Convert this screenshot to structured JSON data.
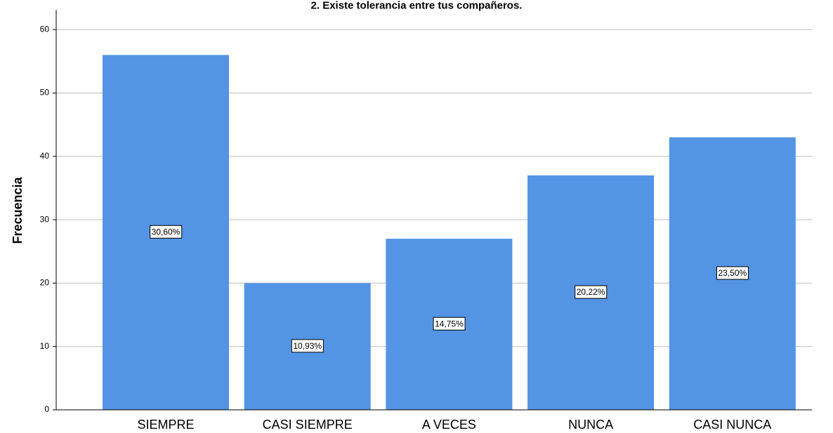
{
  "chart_data": {
    "type": "bar",
    "title": "2. Existe tolerancia entre tus compañeros.",
    "xlabel": "",
    "ylabel": "Frecuencia",
    "categories": [
      "SIEMPRE",
      "CASI SIEMPRE",
      "A VECES",
      "NUNCA",
      "CASI NUNCA"
    ],
    "values": [
      56,
      20,
      27,
      37,
      43
    ],
    "data_labels": [
      "30,60%",
      "10,93%",
      "14,75%",
      "20,22%",
      "23,50%"
    ],
    "ylim": [
      0,
      63
    ],
    "yticks": [
      0,
      10,
      20,
      30,
      40,
      50,
      60
    ],
    "grid": true,
    "bar_color": "#5494e4"
  }
}
